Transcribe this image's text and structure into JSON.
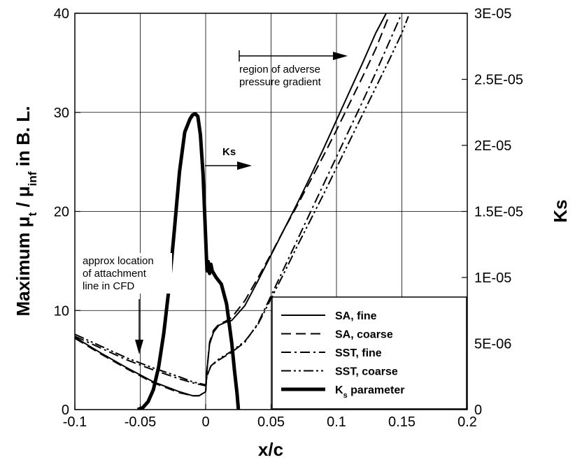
{
  "chart_data": {
    "type": "line",
    "title": "",
    "xlabel": "x/c",
    "ylabel": "Maximum μt / μinf in B. L.",
    "ylabel_parts": {
      "prefix": "Maximum μ",
      "sub1": "t",
      "mid": " / μ",
      "sub2": "inf",
      "suffix": " in B. L."
    },
    "y2label": "Ks",
    "xlim": [
      -0.1,
      0.2
    ],
    "ylim": [
      0,
      40
    ],
    "y2lim": [
      0,
      3e-05
    ],
    "xticks": [
      -0.1,
      -0.05,
      0,
      0.05,
      0.1,
      0.15,
      0.2
    ],
    "xtick_labels": [
      "-0.1",
      "-0.05",
      "0",
      "0.05",
      "0.1",
      "0.15",
      "0.2"
    ],
    "yticks": [
      0,
      10,
      20,
      30,
      40
    ],
    "ytick_labels": [
      "0",
      "10",
      "20",
      "30",
      "40"
    ],
    "y2ticks": [
      0,
      5e-06,
      1e-05,
      1.5e-05,
      2e-05,
      2.5e-05,
      3e-05
    ],
    "y2tick_labels": [
      "0",
      "5E-06",
      "1E-05",
      "1.5E-05",
      "2E-05",
      "2.5E-05",
      "3E-05"
    ],
    "grid": true,
    "legend_position": "bottom-right",
    "series": [
      {
        "name": "SA, fine",
        "dash": "solid",
        "width": 2,
        "axis": "left",
        "x": [
          -0.1,
          -0.08,
          -0.06,
          -0.04,
          -0.02,
          -0.01,
          -0.005,
          0,
          0.001,
          0.003,
          0.006,
          0.01,
          0.015,
          0.02,
          0.03,
          0.04,
          0.05,
          0.06,
          0.07,
          0.08,
          0.09,
          0.1,
          0.11,
          0.12,
          0.13,
          0.138
        ],
        "y": [
          7.3,
          5.7,
          4.2,
          2.8,
          1.8,
          1.4,
          1.4,
          1.8,
          4.0,
          6.6,
          7.8,
          8.5,
          8.8,
          9.0,
          10.5,
          13.0,
          15.6,
          18.2,
          20.8,
          23.5,
          26.3,
          29.2,
          32.1,
          35.0,
          38.0,
          40.0
        ]
      },
      {
        "name": "SA, coarse",
        "dash": "dashed",
        "width": 2,
        "axis": "left",
        "x": [
          -0.1,
          -0.08,
          -0.06,
          -0.04,
          -0.02,
          -0.01,
          -0.005,
          0,
          0.001,
          0.003,
          0.006,
          0.01,
          0.015,
          0.02,
          0.03,
          0.04,
          0.05,
          0.06,
          0.07,
          0.08,
          0.09,
          0.1,
          0.11,
          0.12,
          0.13,
          0.14
        ],
        "y": [
          7.2,
          5.6,
          4.1,
          2.7,
          1.7,
          1.4,
          1.4,
          1.8,
          4.0,
          6.8,
          8.0,
          8.6,
          8.9,
          9.3,
          11.0,
          13.3,
          15.7,
          18.2,
          20.6,
          23.1,
          25.6,
          28.2,
          30.9,
          33.6,
          36.4,
          39.7
        ]
      },
      {
        "name": "SST, fine",
        "dash": "dashdot",
        "width": 2,
        "axis": "left",
        "x": [
          -0.1,
          -0.08,
          -0.06,
          -0.04,
          -0.02,
          -0.01,
          0,
          0.001,
          0.004,
          0.01,
          0.02,
          0.03,
          0.04,
          0.05,
          0.06,
          0.07,
          0.08,
          0.09,
          0.1,
          0.11,
          0.12,
          0.13,
          0.14,
          0.15
        ],
        "y": [
          7.4,
          6.2,
          5.0,
          4.0,
          3.1,
          2.7,
          2.4,
          3.4,
          4.4,
          5.0,
          5.8,
          6.8,
          8.7,
          11.5,
          14.3,
          17.1,
          19.9,
          22.7,
          25.5,
          28.3,
          31.1,
          34.0,
          37.0,
          40.0
        ]
      },
      {
        "name": "SST, coarse",
        "dash": "dashdotdot",
        "width": 2,
        "axis": "left",
        "x": [
          -0.1,
          -0.08,
          -0.06,
          -0.04,
          -0.02,
          -0.01,
          0,
          0.001,
          0.004,
          0.01,
          0.02,
          0.03,
          0.04,
          0.05,
          0.06,
          0.07,
          0.08,
          0.09,
          0.1,
          0.11,
          0.12,
          0.13,
          0.14,
          0.15,
          0.155
        ],
        "y": [
          7.6,
          6.4,
          5.2,
          4.2,
          3.3,
          2.8,
          2.5,
          3.4,
          4.4,
          5.1,
          5.9,
          6.9,
          8.6,
          11.2,
          13.8,
          16.5,
          19.1,
          21.7,
          24.4,
          27.1,
          29.8,
          32.5,
          35.2,
          38.0,
          39.7
        ]
      },
      {
        "name": "K parameter",
        "dash": "solid",
        "width": 5,
        "axis": "right",
        "x": [
          -0.052,
          -0.048,
          -0.044,
          -0.04,
          -0.036,
          -0.032,
          -0.028,
          -0.024,
          -0.02,
          -0.016,
          -0.012,
          -0.01,
          -0.008,
          -0.006,
          -0.004,
          -0.002,
          0,
          0.001,
          0.002,
          0.003,
          0.004,
          0.005,
          0.008,
          0.012,
          0.016,
          0.02,
          0.022,
          0.024,
          0.025
        ],
        "y": [
          0,
          1.5e-07,
          6e-07,
          1.5e-06,
          3.2e-06,
          5.8e-06,
          9.2e-06,
          1.35e-05,
          1.8e-05,
          2.1e-05,
          2.2e-05,
          2.23e-05,
          2.24e-05,
          2.22e-05,
          2.08e-05,
          1.78e-05,
          1.3e-05,
          1.05e-05,
          1.12e-05,
          1.03e-05,
          1.1e-05,
          1.05e-05,
          1e-05,
          9.5e-06,
          8e-06,
          5e-06,
          3e-06,
          1.2e-06,
          0
        ]
      }
    ],
    "legend": {
      "entries": [
        "SA, fine",
        "SA, coarse",
        "SST, fine",
        "SST, coarse"
      ],
      "last_entry_parts": {
        "main": "K",
        "sub": "s",
        "rest": " parameter"
      }
    },
    "annotations": [
      {
        "lines": [
          "region of adverse",
          "pressure gradient"
        ]
      },
      {
        "lines": [
          "Ks"
        ]
      },
      {
        "lines": [
          "approx location",
          "of attachment",
          "line in CFD"
        ]
      }
    ]
  }
}
